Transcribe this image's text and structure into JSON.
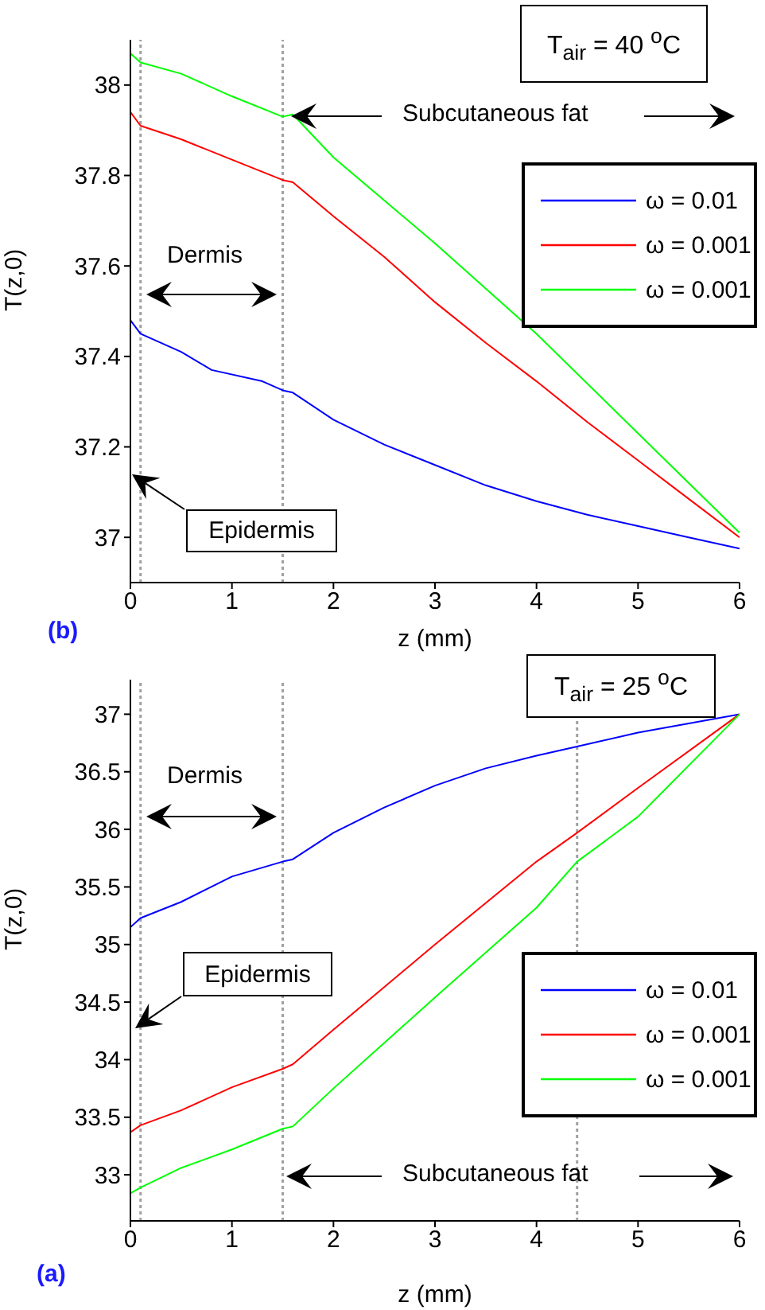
{
  "chart_data": [
    {
      "type": "line",
      "xlabel": "z (mm)",
      "ylabel": "T(z,0)",
      "xlim": [
        0,
        6
      ],
      "xticks": [
        0,
        1,
        2,
        3,
        4,
        5,
        6
      ],
      "ylim": [
        36.9,
        38.1
      ],
      "yticks": [
        37,
        37.2,
        37.4,
        37.6,
        37.8,
        38
      ],
      "legend": "top right",
      "series": [
        {
          "name": "ω = 0.01",
          "color": "#0000ff",
          "x": [
            0,
            0.1,
            0.5,
            0.8,
            1.3,
            1.5,
            1.6,
            2,
            2.5,
            3,
            3.5,
            4,
            4.5,
            5,
            5.5,
            6
          ],
          "values": [
            37.48,
            37.45,
            37.41,
            37.37,
            37.345,
            37.325,
            37.32,
            37.26,
            37.205,
            37.16,
            37.115,
            37.08,
            37.05,
            37.025,
            37.0,
            36.975
          ]
        },
        {
          "name": "ω = 0.001",
          "color": "#ff0000",
          "x": [
            0,
            0.1,
            0.5,
            1,
            1.5,
            1.6,
            2,
            2.5,
            3,
            3.5,
            4,
            4.5,
            5,
            5.5,
            6
          ],
          "values": [
            37.94,
            37.91,
            37.88,
            37.835,
            37.79,
            37.785,
            37.71,
            37.62,
            37.52,
            37.43,
            37.345,
            37.255,
            37.17,
            37.085,
            37.0
          ]
        },
        {
          "name": "ω = 0.001",
          "color": "#00ff00",
          "x": [
            0,
            0.1,
            0.5,
            1,
            1.5,
            1.6,
            2,
            3,
            4,
            5,
            6
          ],
          "values": [
            38.07,
            38.05,
            38.025,
            37.975,
            37.93,
            37.935,
            37.84,
            37.65,
            37.45,
            37.23,
            37.01
          ]
        }
      ],
      "ref_lines": [
        {
          "axis": "x",
          "value": 0.1,
          "color": "#a0a0a0",
          "line_style": "dotted"
        },
        {
          "axis": "x",
          "value": 1.5,
          "color": "#a0a0a0",
          "line_style": "dotted"
        }
      ],
      "annotations": [
        "T$_{air}$ = 40 $^{o}$C",
        "Subcutaneous fat",
        "Dermis",
        "Epidermis",
        "(b)"
      ]
    },
    {
      "type": "line",
      "xlabel": "z (mm)",
      "ylabel": "T(z,0)",
      "xlim": [
        0,
        6
      ],
      "xticks": [
        0,
        1,
        2,
        3,
        4,
        5,
        6
      ],
      "ylim": [
        32.6,
        37.3
      ],
      "yticks": [
        33,
        33.5,
        34,
        34.5,
        35,
        35.5,
        36,
        36.5,
        37
      ],
      "legend": "right",
      "series": [
        {
          "name": "ω = 0.01",
          "color": "#0000ff",
          "x": [
            0,
            0.1,
            0.5,
            1,
            1.5,
            1.6,
            2,
            2.5,
            3,
            3.5,
            4,
            4.4,
            5,
            5.5,
            6
          ],
          "values": [
            35.15,
            35.23,
            35.37,
            35.59,
            35.72,
            35.74,
            35.97,
            36.19,
            36.38,
            36.53,
            36.64,
            36.72,
            36.84,
            36.92,
            37.0
          ]
        },
        {
          "name": "ω = 0.001",
          "color": "#ff0000",
          "x": [
            0,
            0.1,
            0.5,
            1,
            1.5,
            1.6,
            2,
            3,
            4,
            4.4,
            5,
            6
          ],
          "values": [
            33.37,
            33.43,
            33.56,
            33.76,
            33.92,
            33.96,
            34.26,
            35.0,
            35.72,
            35.97,
            36.36,
            37.0
          ]
        },
        {
          "name": "ω = 0.001",
          "color": "#00ff00",
          "x": [
            0,
            0.1,
            0.5,
            1,
            1.5,
            1.6,
            2,
            3,
            4,
            4.4,
            5,
            6
          ],
          "values": [
            32.84,
            32.89,
            33.06,
            33.22,
            33.4,
            33.42,
            33.75,
            34.54,
            35.32,
            35.72,
            36.11,
            37.0
          ]
        }
      ],
      "ref_lines": [
        {
          "axis": "x",
          "value": 0.1,
          "color": "#a0a0a0",
          "line_style": "dotted"
        },
        {
          "axis": "x",
          "value": 1.5,
          "color": "#a0a0a0",
          "line_style": "dotted"
        },
        {
          "axis": "x",
          "value": 4.4,
          "color": "#a0a0a0",
          "line_style": "dotted"
        }
      ],
      "annotations": [
        "T$_{air}$ = 25 $^{o}$C",
        "Subcutaneous fat",
        "Dermis",
        "Epidermis",
        "(a)"
      ]
    }
  ]
}
